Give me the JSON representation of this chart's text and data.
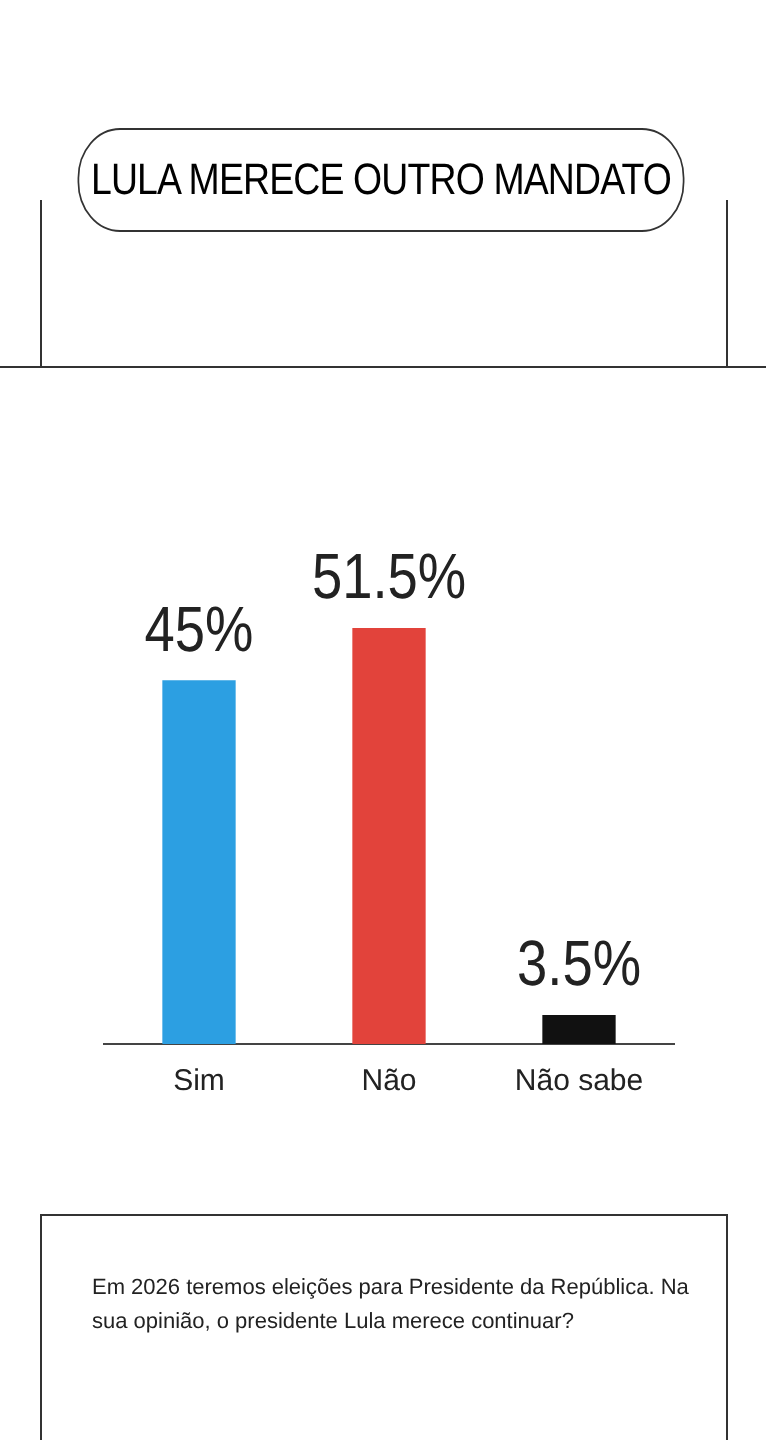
{
  "chart_data": {
    "type": "bar",
    "title": "LULA MERECE OUTRO MANDATO",
    "categories": [
      "Sim",
      "Não",
      "Não sabe"
    ],
    "values": [
      45,
      51.5,
      3.5
    ],
    "colors": [
      "#2c9fe2",
      "#e2433b",
      "#111111"
    ],
    "value_labels": [
      "45%",
      "51.5%",
      "3.5%"
    ],
    "grid": false,
    "legend": false,
    "tick_labels": "x",
    "annotations": [
      "Em 2026 teremos eleições para Presidente da República. Na sua opinião, o presidente Lula merece continuar?"
    ]
  }
}
